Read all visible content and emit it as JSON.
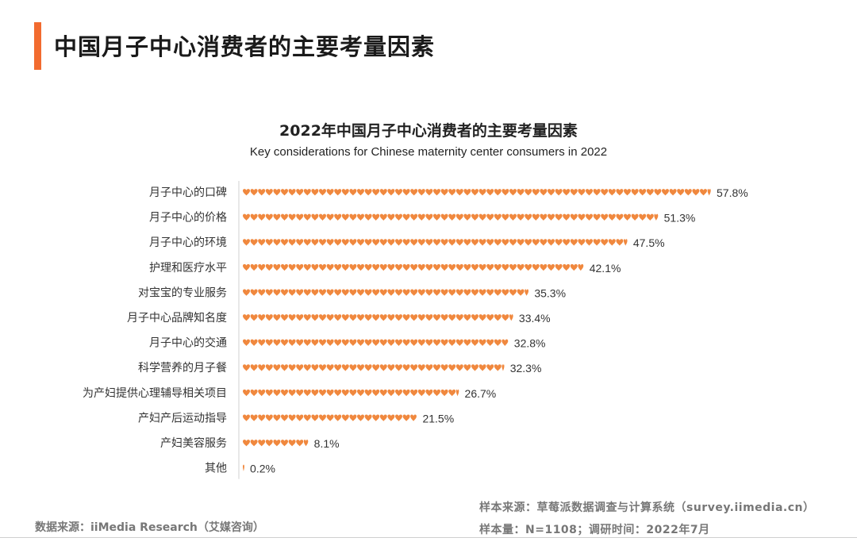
{
  "page": {
    "title": "中国月子中心消费者的主要考量因素",
    "accent_color": "#f26b2f"
  },
  "chart_data": {
    "type": "bar",
    "title": "2022年中国月子中心消费者的主要考量因素",
    "subtitle": "Key considerations for Chinese maternity center consumers in 2022",
    "categories": [
      "月子中心的口碑",
      "月子中心的价格",
      "月子中心的环境",
      "护理和医疗水平",
      "对宝宝的专业服务",
      "月子中心品牌知名度",
      "月子中心的交通",
      "科学营养的月子餐",
      "为产妇提供心理辅导相关项目",
      "产妇产后运动指导",
      "产妇美容服务",
      "其他"
    ],
    "values": [
      57.8,
      51.3,
      47.5,
      42.1,
      35.3,
      33.4,
      32.8,
      32.3,
      26.7,
      21.5,
      8.1,
      0.2
    ],
    "value_labels": [
      "57.8%",
      "51.3%",
      "47.5%",
      "42.1%",
      "35.3%",
      "33.4%",
      "32.8%",
      "32.3%",
      "26.7%",
      "21.5%",
      "8.1%",
      "0.2%"
    ],
    "unit": "%",
    "orientation": "horizontal",
    "mark": "heart pictogram",
    "bar_color": "#f0883e",
    "grid": false,
    "legend": "none"
  },
  "footer": {
    "source": "数据来源：iiMedia Research（艾媒咨询）",
    "sample_source": "样本来源：草莓派数据调查与计算系统（survey.iimedia.cn）",
    "sample_size": "样本量：N=1108；调研时间：2022年7月"
  }
}
